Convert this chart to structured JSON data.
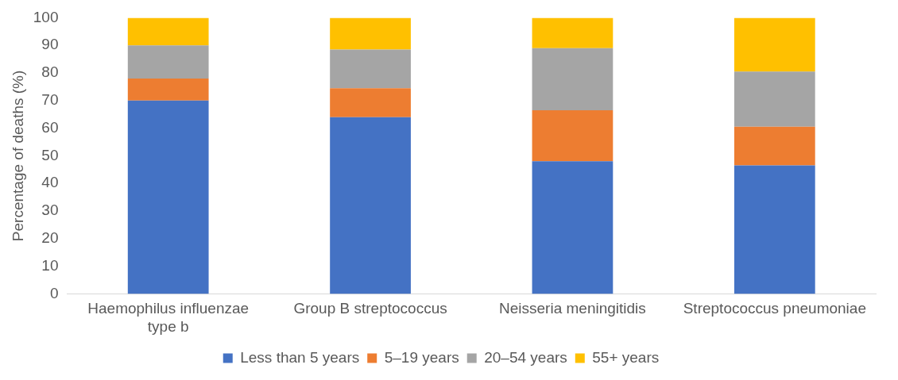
{
  "chart_data": {
    "type": "bar",
    "stacked": true,
    "ylabel": "Percentage of deaths (%)",
    "categories": [
      "Haemophilus influenzae type b",
      "Group B streptococcus",
      "Neisseria meningitidis",
      "Streptococcus pneumoniae"
    ],
    "series": [
      {
        "name": "Less than 5 years",
        "color": "#4472c4",
        "values": [
          70,
          64,
          48,
          46.5
        ]
      },
      {
        "name": "5–19 years",
        "color": "#ed7d31",
        "values": [
          8,
          10.5,
          18.5,
          14
        ]
      },
      {
        "name": "20–54 years",
        "color": "#a5a5a5",
        "values": [
          12,
          14,
          22.5,
          20
        ]
      },
      {
        "name": "55+ years",
        "color": "#ffc000",
        "values": [
          10,
          11.5,
          11,
          19.5
        ]
      }
    ],
    "ylim": [
      0,
      100
    ],
    "yticks": [
      0,
      10,
      20,
      30,
      40,
      50,
      60,
      70,
      80,
      90,
      100
    ],
    "grid": false,
    "legend": "bottom"
  }
}
